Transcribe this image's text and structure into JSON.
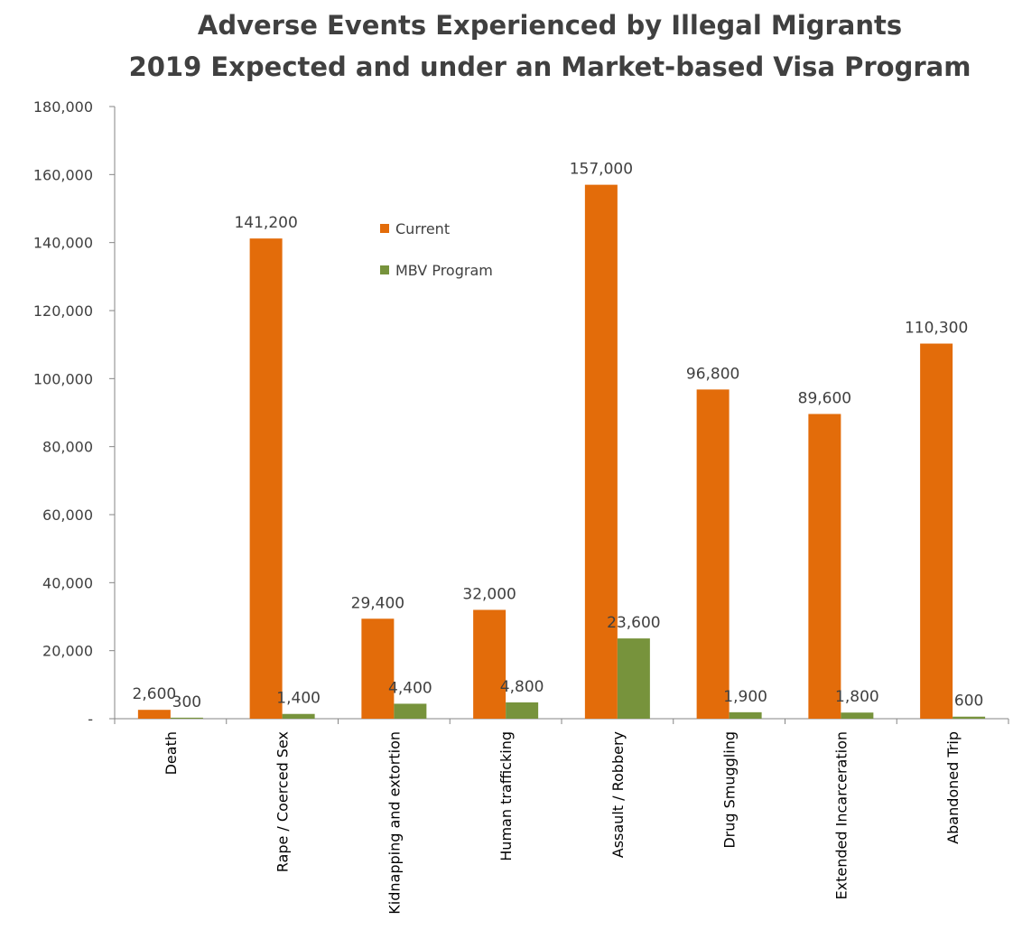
{
  "chart_data": {
    "type": "bar",
    "title": "Adverse Events Experienced by Illegal Migrants",
    "subtitle": "2019 Expected and under an Market-based Visa Program",
    "xlabel": "",
    "ylabel": "",
    "categories": [
      "Death",
      "Rape / Coerced Sex",
      "Kidnapping and extortion",
      "Human trafficking",
      "Assault / Robbery",
      "Drug Smuggling",
      "Extended Incarceration",
      "Abandoned Trip"
    ],
    "series": [
      {
        "name": "Current",
        "color": "#E36C0A",
        "values": [
          2600,
          141200,
          29400,
          32000,
          157000,
          96800,
          89600,
          110300
        ],
        "labels": [
          "2,600",
          "141,200",
          "29,400",
          "32,000",
          "157,000",
          "96,800",
          "89,600",
          "110,300"
        ]
      },
      {
        "name": "MBV Program",
        "color": "#77933C",
        "values": [
          300,
          1400,
          4400,
          4800,
          23600,
          1900,
          1800,
          600
        ],
        "labels": [
          "300",
          "1,400",
          "4,400",
          "4,800",
          "23,600",
          "1,900",
          "1,800",
          "600"
        ]
      }
    ],
    "ylim": [
      0,
      180000
    ],
    "yticks": [
      0,
      20000,
      40000,
      60000,
      80000,
      100000,
      120000,
      140000,
      160000,
      180000
    ],
    "ytick_labels": [
      "-",
      "20,000",
      "40,000",
      "60,000",
      "80,000",
      "100,000",
      "120,000",
      "140,000",
      "160,000",
      "180,000"
    ],
    "legend_position": "top-center",
    "grid": false
  }
}
